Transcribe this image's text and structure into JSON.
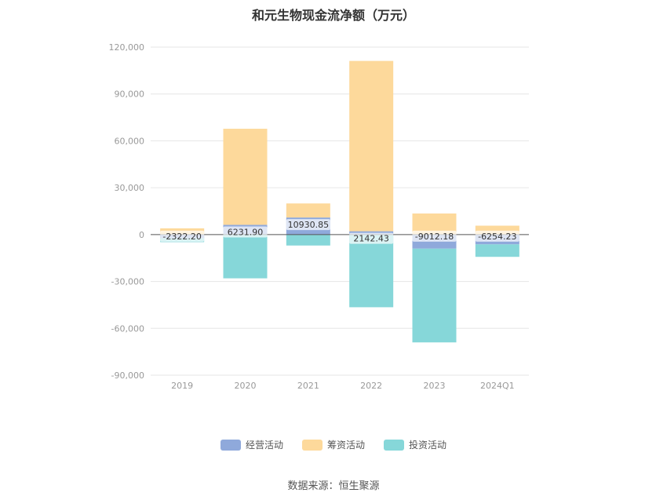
{
  "chart_data": {
    "type": "bar",
    "title": "和元生物现金流净额（万元）",
    "source": "数据来源：恒生聚源",
    "categories": [
      "2019",
      "2020",
      "2021",
      "2022",
      "2023",
      "2024Q1"
    ],
    "y_ticks": [
      "120,000",
      "90,000",
      "60,000",
      "30,000",
      "0",
      "-30,000",
      "-60,000",
      "-90,000"
    ],
    "ylim": [
      -90000,
      120000
    ],
    "grid": true,
    "legend_position": "bottom",
    "series": [
      {
        "name": "经营活动",
        "color": "#8FA9DB",
        "values": [
          -2322.2,
          6231.9,
          10930.85,
          2142.43,
          -9012.18,
          -6254.23
        ],
        "labels": [
          "-2322.20",
          "6231.90",
          "10930.85",
          "2142.43",
          "-9012.18",
          "-6254.23"
        ]
      },
      {
        "name": "筹资活动",
        "color": "#FDD99B",
        "values": [
          4000,
          61500,
          9000,
          109000,
          13500,
          5700
        ]
      },
      {
        "name": "投资活动",
        "color": "#86D7D9",
        "values": [
          -2500,
          -28000,
          -7000,
          -46500,
          -60000,
          -8000
        ]
      }
    ]
  }
}
